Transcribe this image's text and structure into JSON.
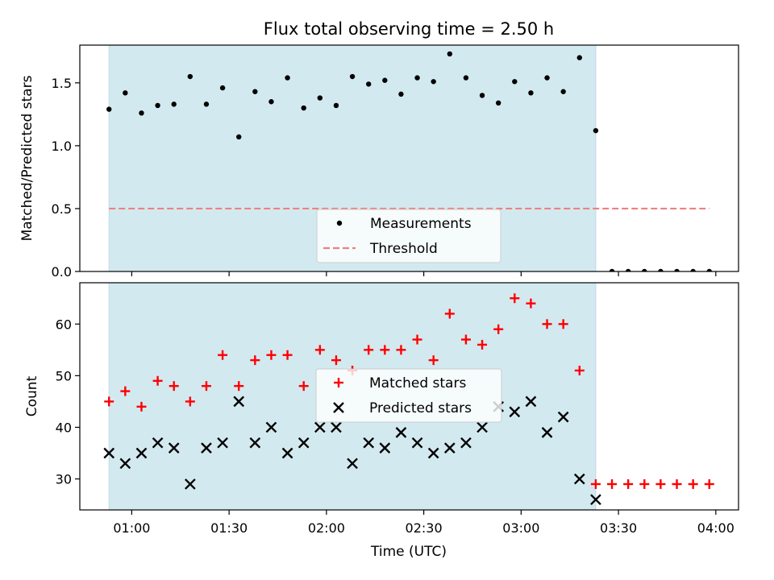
{
  "chart_data": {
    "title": "Flux total observing time = 2.50 h",
    "xlabel": "Time (UTC)",
    "x_ticks": [
      "01:00",
      "01:30",
      "02:00",
      "02:30",
      "03:00",
      "03:30",
      "04:00"
    ],
    "x_tick_minutes": [
      60,
      90,
      120,
      150,
      180,
      210,
      240
    ],
    "xlim_minutes": [
      44,
      247
    ],
    "observing_window_minutes": [
      53,
      203
    ],
    "window_color": "#d3e9f0",
    "times_minutes": [
      53,
      58,
      63,
      68,
      73,
      78,
      83,
      88,
      93,
      98,
      103,
      108,
      113,
      118,
      123,
      128,
      133,
      138,
      143,
      148,
      153,
      158,
      163,
      168,
      173,
      178,
      183,
      188,
      193,
      198,
      203,
      208,
      213,
      218,
      223,
      228,
      233,
      238
    ],
    "panels": [
      {
        "type": "scatter",
        "ylabel": "Matched/Predicted stars",
        "ylim": [
          0,
          1.8
        ],
        "y_ticks": [
          "0.0",
          "0.5",
          "1.0",
          "1.5"
        ],
        "y_tick_values": [
          0,
          0.5,
          1.0,
          1.5
        ],
        "series": [
          {
            "name": "Measurements",
            "marker": "dot",
            "color": "#000000",
            "values": [
              1.29,
              1.42,
              1.26,
              1.32,
              1.33,
              1.55,
              1.33,
              1.46,
              1.07,
              1.43,
              1.35,
              1.54,
              1.3,
              1.38,
              1.32,
              1.55,
              1.49,
              1.52,
              1.41,
              1.54,
              1.51,
              1.73,
              1.54,
              1.4,
              1.34,
              1.51,
              1.42,
              1.54,
              1.43,
              1.7,
              1.12,
              0,
              0,
              0,
              0,
              0,
              0,
              0
            ]
          }
        ],
        "threshold": {
          "name": "Threshold",
          "value": 0.5,
          "x_minutes": [
            53,
            238
          ],
          "color": "#f08080"
        },
        "legend": [
          "Measurements",
          "Threshold"
        ],
        "legend_position": "lower center"
      },
      {
        "type": "scatter",
        "ylabel": "Count",
        "ylim": [
          24,
          68
        ],
        "y_ticks": [
          "30",
          "40",
          "50",
          "60"
        ],
        "y_tick_values": [
          30,
          40,
          50,
          60
        ],
        "series": [
          {
            "name": "Matched stars",
            "marker": "plus",
            "color": "#ff0000",
            "values": [
              45,
              47,
              44,
              49,
              48,
              45,
              48,
              54,
              48,
              53,
              54,
              54,
              48,
              55,
              53,
              51,
              55,
              55,
              55,
              57,
              53,
              62,
              57,
              56,
              59,
              65,
              64,
              60,
              60,
              51,
              29,
              29,
              29,
              29,
              29,
              29,
              29,
              29
            ]
          },
          {
            "name": "Predicted stars",
            "marker": "x",
            "color": "#000000",
            "values": [
              35,
              33,
              35,
              37,
              36,
              29,
              36,
              37,
              45,
              37,
              40,
              35,
              37,
              40,
              40,
              33,
              37,
              36,
              39,
              37,
              35,
              36,
              37,
              40,
              44,
              43,
              45,
              39,
              42,
              30,
              26,
              null,
              null,
              null,
              null,
              null,
              null,
              null
            ]
          }
        ],
        "legend": [
          "Matched stars",
          "Predicted stars"
        ],
        "legend_position": "center"
      }
    ]
  }
}
